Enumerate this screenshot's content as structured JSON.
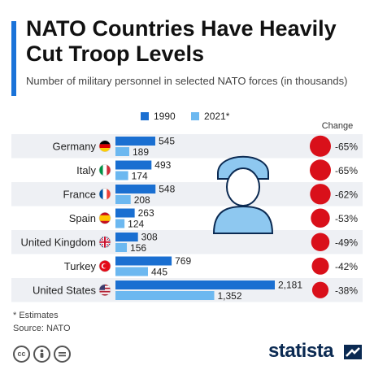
{
  "header": {
    "title": "NATO Countries Have Heavily Cut Troop Levels",
    "subtitle": "Number of military personnel in selected NATO forces (in thousands)"
  },
  "legend": {
    "series_1990": "1990",
    "series_2021": "2021*"
  },
  "change_header": "Change",
  "colors": {
    "accent": "#1a73d9",
    "bar_1990": "#1a6fd1",
    "bar_2021": "#6cb8f0",
    "row_band": "#eef0f4",
    "change_circle": "#d9101a",
    "soldier_icon": "#8ec8f0",
    "brand": "#0b2a52"
  },
  "chart_data": {
    "type": "bar",
    "orientation": "horizontal",
    "title": "NATO Countries Have Heavily Cut Troop Levels",
    "subtitle": "Number of military personnel in selected NATO forces (in thousands)",
    "categories": [
      "Germany",
      "Italy",
      "France",
      "Spain",
      "United Kingdom",
      "Turkey",
      "United States"
    ],
    "series": [
      {
        "name": "1990",
        "values": [
          545,
          493,
          548,
          263,
          308,
          769,
          2181
        ],
        "labels": [
          "545",
          "493",
          "548",
          "263",
          "308",
          "769",
          "2,181"
        ]
      },
      {
        "name": "2021*",
        "values": [
          189,
          174,
          208,
          124,
          156,
          445,
          1352
        ],
        "labels": [
          "189",
          "174",
          "208",
          "124",
          "156",
          "445",
          "1,352"
        ]
      }
    ],
    "change": [
      "-65%",
      "-65%",
      "-62%",
      "-53%",
      "-49%",
      "-42%",
      "-38%"
    ],
    "change_values": [
      -65,
      -65,
      -62,
      -53,
      -49,
      -42,
      -38
    ],
    "flag_icons": [
      "flag-germany-icon",
      "flag-italy-icon",
      "flag-france-icon",
      "flag-spain-icon",
      "flag-uk-icon",
      "flag-turkey-icon",
      "flag-usa-icon"
    ],
    "legend_placement": "top",
    "grid": false
  },
  "footer": {
    "note": "* Estimates",
    "source": "Source: NATO",
    "brand": "statista",
    "license_icons": [
      "cc-icon",
      "by-icon",
      "nd-icon"
    ]
  },
  "decoration": {
    "icon": "soldier-icon"
  }
}
